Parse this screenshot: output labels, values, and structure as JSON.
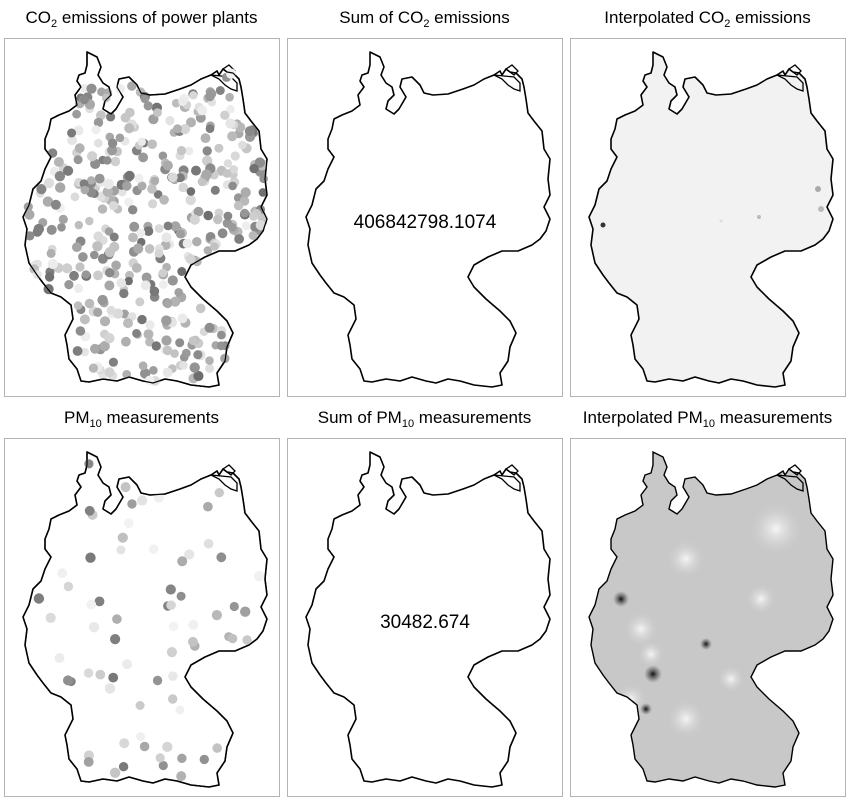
{
  "panels": [
    {
      "title_pre": "CO",
      "title_sub": "2",
      "title_post": " emissions of power plants",
      "kind": "points_co2"
    },
    {
      "title_pre": "Sum of CO",
      "title_sub": "2",
      "title_post": " emissions",
      "kind": "sum",
      "value": "406842798.1074"
    },
    {
      "title_pre": "Interpolated CO",
      "title_sub": "2",
      "title_post": " emissions",
      "kind": "interp_co2"
    },
    {
      "title_pre": "PM",
      "title_sub": "10",
      "title_post": " measurements",
      "kind": "points_pm"
    },
    {
      "title_pre": "Sum of PM",
      "title_sub": "10",
      "title_post": " measurements",
      "kind": "sum",
      "value": "30482.674"
    },
    {
      "title_pre": "Interpolated PM",
      "title_sub": "10",
      "title_post": " measurements",
      "kind": "interp_pm"
    }
  ],
  "colors": {
    "border": "#b3b3b3",
    "outline": "#000000",
    "co2_background": "#f2f2f2",
    "pm_background": "#c8c8c8"
  }
}
